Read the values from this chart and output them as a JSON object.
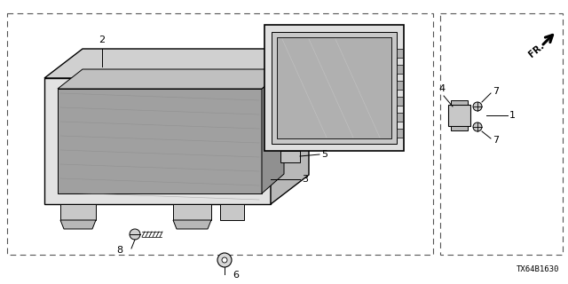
{
  "bg_color": "#ffffff",
  "line_color": "#000000",
  "gray_color": "#888888",
  "light_gray": "#cccccc",
  "dashed_line_color": "#555555",
  "diagram_id": "TX64B1630",
  "fr_label": "FR."
}
